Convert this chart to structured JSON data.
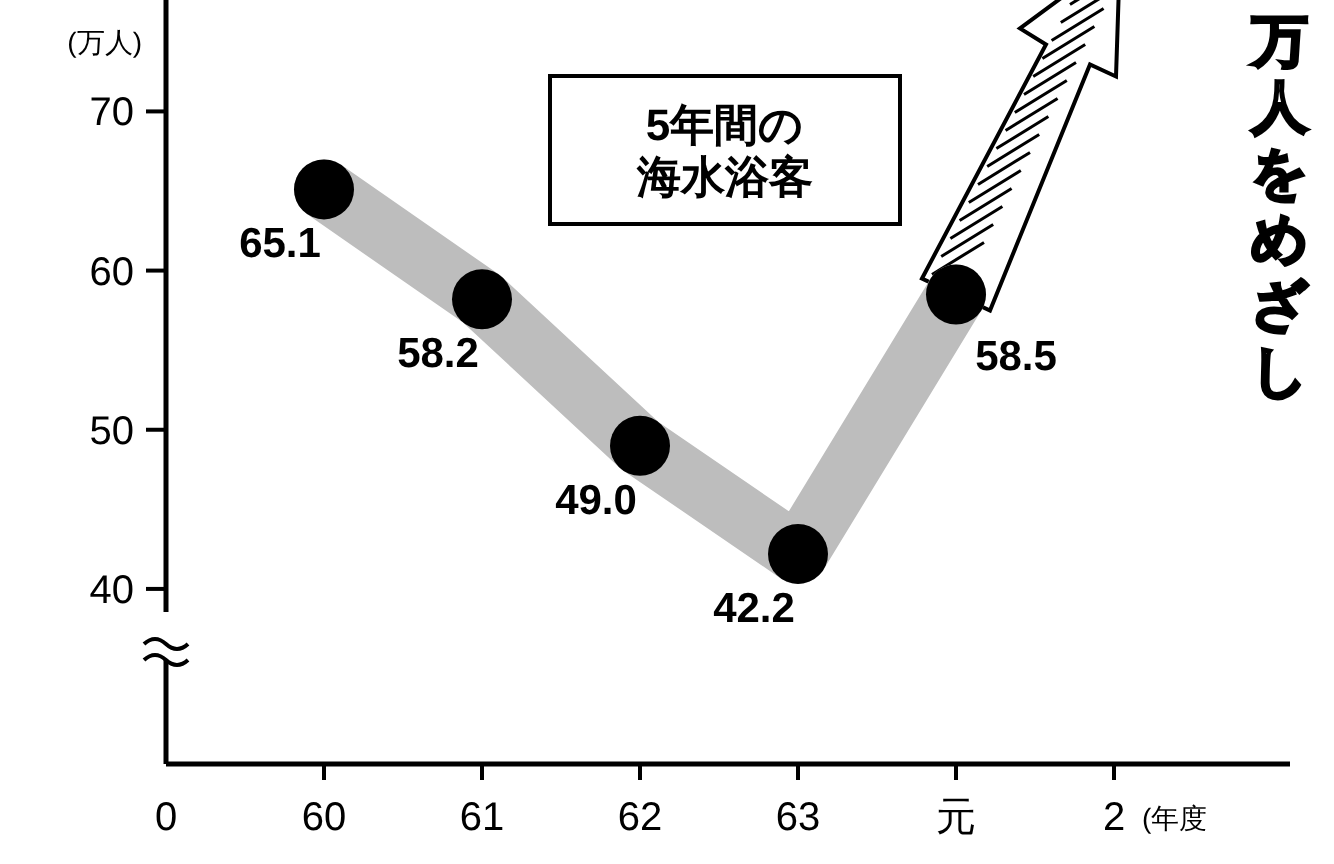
{
  "chart_data": {
    "type": "line",
    "title": "5年間の海水浴客",
    "ylabel": "(万人)",
    "xlabel": "(年度",
    "categories": [
      "60",
      "61",
      "62",
      "63",
      "元",
      "2"
    ],
    "series": [
      {
        "color": "#bdbdbd",
        "values": [
          65.1,
          58.2,
          49.0,
          42.2,
          58.5,
          null
        ],
        "value_labels": [
          "65.1",
          "58.2",
          "49.0",
          "42.2",
          "58.5",
          null
        ]
      }
    ],
    "ylim": [
      29,
      77
    ],
    "yticks": [
      40,
      50,
      60,
      70
    ],
    "marker": "circle",
    "annotations": [
      "0",
      "万人をめざし"
    ]
  }
}
